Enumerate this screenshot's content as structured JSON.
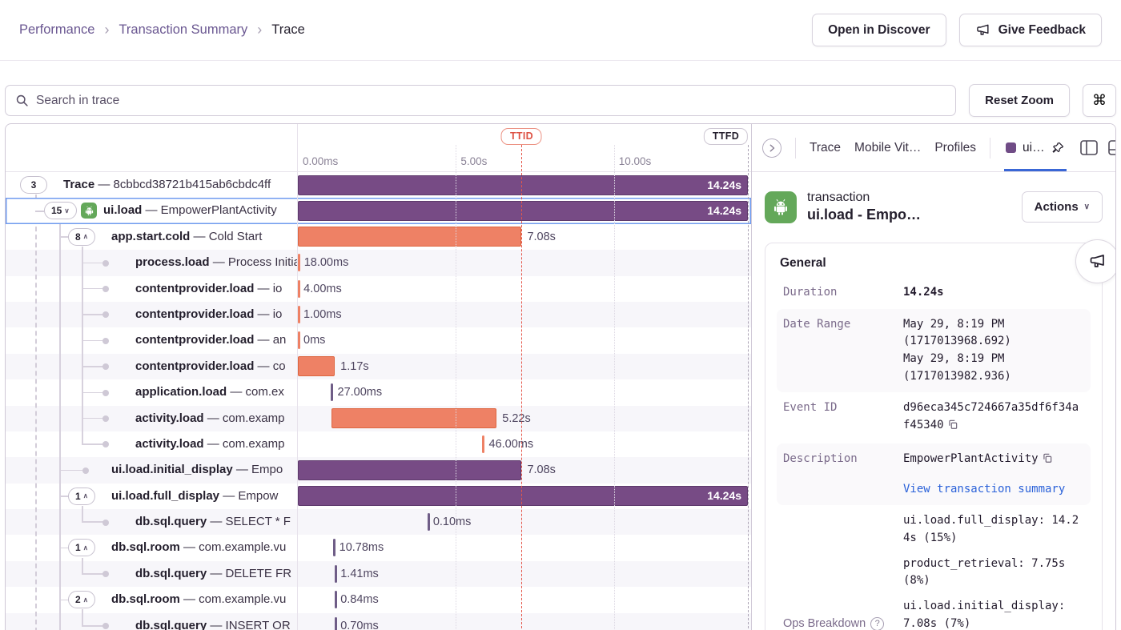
{
  "breadcrumb": {
    "items": [
      "Performance",
      "Transaction Summary"
    ],
    "current": "Trace"
  },
  "header_buttons": {
    "open_discover": "Open in Discover",
    "give_feedback": "Give Feedback"
  },
  "toolbar": {
    "search_placeholder": "Search in trace",
    "reset_zoom": "Reset Zoom",
    "shortcut": "⌘"
  },
  "timeline": {
    "range_s": 14.34,
    "ticks": [
      {
        "label": "0.00ms",
        "s": 0
      },
      {
        "label": "5.00s",
        "s": 5
      },
      {
        "label": "10.00s",
        "s": 10
      }
    ],
    "ttid": {
      "label": "TTID",
      "s": 7.08
    },
    "ttfd": {
      "label": "TTFD",
      "s": 14.24
    }
  },
  "waterfall": {
    "rows": [
      {
        "level": 0,
        "pill": "3",
        "chevron": null,
        "op": "Trace",
        "desc": "8cbbcd38721b415ab6cbdc4ff",
        "bar": {
          "start": 0,
          "dur": 14.24,
          "kind": "purple",
          "label": "14.24s",
          "label_pos": "inside"
        }
      },
      {
        "level": 1,
        "pill": "15",
        "chevron": "down",
        "icon": "android",
        "selected": true,
        "op": "ui.load",
        "desc": "EmpowerPlantActivity",
        "bar": {
          "start": 0,
          "dur": 14.24,
          "kind": "purple",
          "label": "14.24s",
          "label_pos": "inside"
        }
      },
      {
        "level": 2,
        "pill": "8",
        "chevron": "up",
        "op": "app.start.cold",
        "desc": "Cold Start",
        "bar": {
          "start": 0,
          "dur": 7.08,
          "kind": "orange",
          "label": "7.08s",
          "label_pos": "after"
        }
      },
      {
        "level": 3,
        "dot": true,
        "op": "process.load",
        "desc": "Process Initialization",
        "bar": {
          "start": 0,
          "dur": 0.018,
          "kind": "tick-orange",
          "label": "18.00ms",
          "label_pos": "after"
        }
      },
      {
        "level": 3,
        "dot": true,
        "op": "contentprovider.load",
        "desc": "io",
        "bar": {
          "start": 0,
          "dur": 0.004,
          "kind": "tick-orange",
          "label": "4.00ms",
          "label_pos": "after"
        }
      },
      {
        "level": 3,
        "dot": true,
        "op": "contentprovider.load",
        "desc": "io",
        "bar": {
          "start": 0,
          "dur": 0.001,
          "kind": "tick-orange",
          "label": "1.00ms",
          "label_pos": "after"
        }
      },
      {
        "level": 3,
        "dot": true,
        "op": "contentprovider.load",
        "desc": "an",
        "bar": {
          "start": 0,
          "dur": 0,
          "kind": "tick-orange",
          "label": "0ms",
          "label_pos": "after"
        }
      },
      {
        "level": 3,
        "dot": true,
        "op": "contentprovider.load",
        "desc": "co",
        "bar": {
          "start": 0,
          "dur": 1.17,
          "kind": "orange",
          "label": "1.17s",
          "label_pos": "after"
        }
      },
      {
        "level": 3,
        "dot": true,
        "op": "application.load",
        "desc": "com.ex",
        "bar": {
          "start": 1.05,
          "dur": 0.027,
          "kind": "tick-purple",
          "label": "27.00ms",
          "label_pos": "after"
        }
      },
      {
        "level": 3,
        "dot": true,
        "op": "activity.load",
        "desc": "com.examp",
        "bar": {
          "start": 1.07,
          "dur": 5.22,
          "kind": "orange",
          "label": "5.22s",
          "label_pos": "after"
        }
      },
      {
        "level": 3,
        "dot": true,
        "op": "activity.load",
        "desc": "com.examp",
        "bar": {
          "start": 5.82,
          "dur": 0.046,
          "kind": "tick-orange",
          "label": "46.00ms",
          "label_pos": "after"
        }
      },
      {
        "level": 2,
        "dot": true,
        "op": "ui.load.initial_display",
        "desc": "Empo",
        "bar": {
          "start": 0,
          "dur": 7.08,
          "kind": "purple",
          "label": "7.08s",
          "label_pos": "after"
        }
      },
      {
        "level": 2,
        "pill": "1",
        "chevron": "up",
        "op": "ui.load.full_display",
        "desc": "Empow",
        "bar": {
          "start": 0,
          "dur": 14.24,
          "kind": "purple",
          "label": "14.24s",
          "label_pos": "inside"
        }
      },
      {
        "level": 3,
        "dot": true,
        "op": "db.sql.query",
        "desc": "SELECT * F",
        "bar": {
          "start": 4.1,
          "dur": 0.0001,
          "kind": "tick-purple",
          "label": "0.10ms",
          "label_pos": "after"
        }
      },
      {
        "level": 2,
        "pill": "1",
        "chevron": "up",
        "op": "db.sql.room",
        "desc": "com.example.vu",
        "bar": {
          "start": 1.12,
          "dur": 0.0108,
          "kind": "tick-purple",
          "label": "10.78ms",
          "label_pos": "after"
        }
      },
      {
        "level": 3,
        "dot": true,
        "op": "db.sql.query",
        "desc": "DELETE FR",
        "bar": {
          "start": 1.17,
          "dur": 0.0014,
          "kind": "tick-purple",
          "label": "1.41ms",
          "label_pos": "after"
        }
      },
      {
        "level": 2,
        "pill": "2",
        "chevron": "up",
        "op": "db.sql.room",
        "desc": "com.example.vu",
        "bar": {
          "start": 1.17,
          "dur": 0.0008,
          "kind": "tick-purple",
          "label": "0.84ms",
          "label_pos": "after"
        }
      },
      {
        "level": 3,
        "dot": true,
        "op": "db.sql.query",
        "desc": "INSERT OR",
        "bar": {
          "start": 1.17,
          "dur": 0.0007,
          "kind": "tick-purple",
          "label": "0.70ms",
          "label_pos": "after"
        }
      }
    ]
  },
  "sidepanel": {
    "tabs": [
      "Trace",
      "Mobile Vit…",
      "Profiles"
    ],
    "active_tab": "ui…",
    "transaction": {
      "kind": "transaction",
      "name": "ui.load - Empo…",
      "actions_label": "Actions"
    },
    "general": {
      "title": "General",
      "duration_label": "Duration",
      "duration": "14.24s",
      "date_range_label": "Date Range",
      "date_range": [
        "May 29, 8:19 PM",
        "(1717013968.692)",
        "May 29, 8:19 PM",
        "(1717013982.936)"
      ],
      "event_id_label": "Event ID",
      "event_id": "d96eca345c724667a35df6f34af45340",
      "description_label": "Description",
      "description": "EmpowerPlantActivity",
      "description_link": "View transaction summary",
      "ops_label": "Ops Breakdown",
      "ops": [
        "ui.load.full_display: 14.24s (15%)",
        "product_retrieval: 7.75s (8%)",
        "ui.load.initial_display: 7.08s (7%)"
      ]
    }
  },
  "colors": {
    "purple_bar": "#774b85",
    "orange_bar": "#ee8165",
    "selected_blue": "#6f9bef",
    "link_blue": "#2b62d9",
    "ttid_red": "#dd5244",
    "android_green": "#64a85a"
  }
}
